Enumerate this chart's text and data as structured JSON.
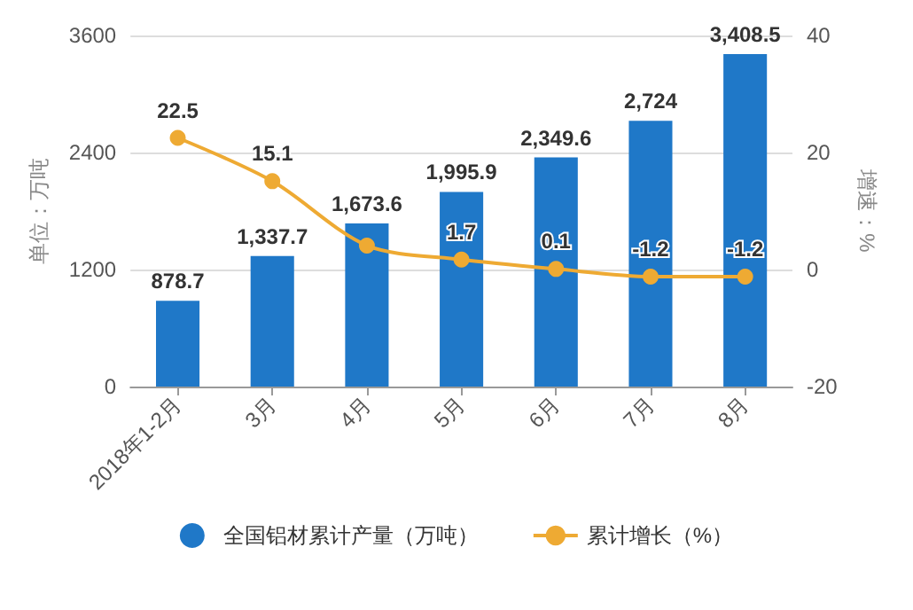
{
  "chart_data": {
    "type": "bar",
    "categories": [
      "2018年1-2月",
      "3月",
      "4月",
      "5月",
      "6月",
      "7月",
      "8月"
    ],
    "ylabel": "单位：万吨",
    "y2label": "增速：%",
    "ylim": [
      0,
      3600
    ],
    "yticks": [
      0,
      1200,
      2400,
      3600
    ],
    "y2lim": [
      -20,
      40
    ],
    "y2ticks": [
      -20,
      0,
      20,
      40
    ],
    "grid": "y",
    "legend": "bottom",
    "series": [
      {
        "name": "全国铝材累计产量（万吨）",
        "color": "#1f78c8",
        "values": [
          878.7,
          1337.7,
          1673.6,
          1995.9,
          2349.6,
          2724,
          3408.5
        ],
        "value_labels": [
          "878.7",
          "1,337.7",
          "1,673.6",
          "1,995.9",
          "2,349.6",
          "2,724",
          "3,408.5"
        ]
      },
      {
        "name": "累计增长（%）",
        "type": "line",
        "axis": "y2",
        "color": "#eeaa33",
        "marker": "circle",
        "values": [
          22.5,
          15.1,
          4.1,
          1.7,
          0.1,
          -1.2,
          -1.2
        ],
        "value_labels": [
          "22.5",
          "15.1",
          null,
          "1.7",
          "0.1",
          "-1.2",
          "-1.2"
        ]
      }
    ]
  }
}
